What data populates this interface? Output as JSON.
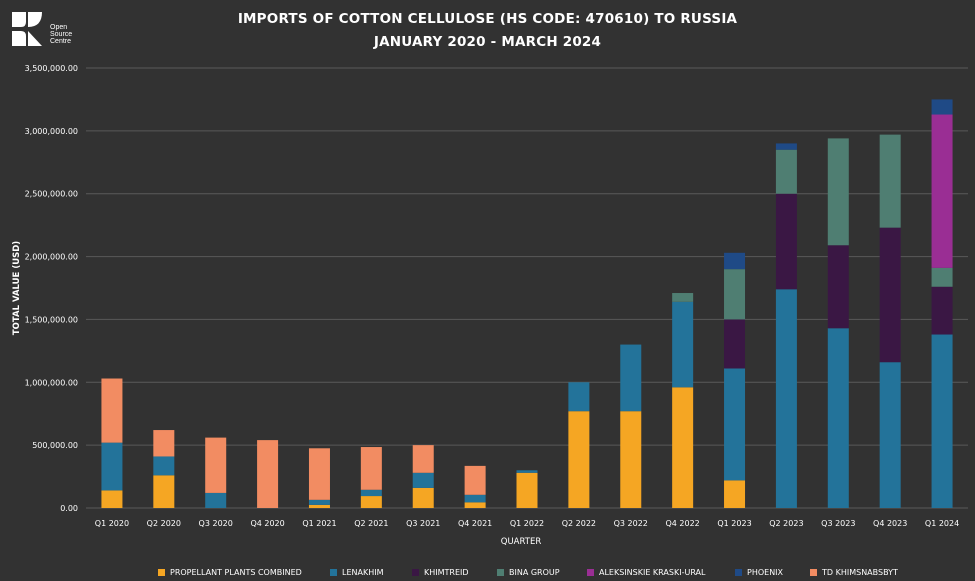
{
  "header": {
    "title_line1": "IMPORTS OF COTTON CELLULOSE (HS CODE: 470610) TO RUSSIA",
    "title_line2": "JANUARY 2020 - MARCH 2024"
  },
  "logo": {
    "line1": "Open",
    "line2": "Source",
    "line3": "Centre"
  },
  "colors": {
    "background": "#323232",
    "grid": "#5a5a5a",
    "text": "#ffffff",
    "propellant": "#F5A623",
    "lenakhim": "#23739A",
    "khimtreid": "#3A1744",
    "bina": "#4F7E72",
    "aleksinskie": "#9A2E94",
    "phoenix": "#1F4A86",
    "td": "#F28C62"
  },
  "chart_data": {
    "type": "bar",
    "stacked": true,
    "xlabel": "QUARTER",
    "ylabel": "TOTAL VALUE (USD)",
    "ylim": [
      0,
      3500000
    ],
    "yticks": [
      0,
      500000,
      1000000,
      1500000,
      2000000,
      2500000,
      3000000,
      3500000
    ],
    "ytick_labels": [
      "0.00",
      "500,000.00",
      "1,000,000.00",
      "1,500,000.00",
      "2,000,000.00",
      "2,500,000.00",
      "3,000,000.00",
      "3,500,000.00"
    ],
    "grid": true,
    "legend_position": "bottom",
    "categories": [
      "Q1 2020",
      "Q2 2020",
      "Q3 2020",
      "Q4 2020",
      "Q1 2021",
      "Q2 2021",
      "Q3 2021",
      "Q4 2021",
      "Q1 2022",
      "Q2 2022",
      "Q3 2022",
      "Q4 2022",
      "Q1 2023",
      "Q2 2023",
      "Q3 2023",
      "Q4 2023",
      "Q1 2024"
    ],
    "series": [
      {
        "name": "PROPELLANT PLANTS COMBINED",
        "color_key": "propellant",
        "values": [
          140000,
          260000,
          0,
          0,
          25000,
          95000,
          160000,
          45000,
          280000,
          770000,
          770000,
          960000,
          220000,
          0,
          0,
          0,
          0
        ]
      },
      {
        "name": "LENAKHIM",
        "color_key": "lenakhim",
        "values": [
          380000,
          150000,
          120000,
          0,
          40000,
          50000,
          120000,
          60000,
          20000,
          230000,
          530000,
          680000,
          890000,
          1740000,
          1430000,
          1160000,
          1380000
        ]
      },
      {
        "name": "KHIMTREID",
        "color_key": "khimtreid",
        "values": [
          0,
          0,
          0,
          0,
          0,
          0,
          0,
          0,
          0,
          0,
          0,
          0,
          390000,
          760000,
          660000,
          1070000,
          380000
        ]
      },
      {
        "name": "BINA GROUP",
        "color_key": "bina",
        "values": [
          0,
          0,
          0,
          0,
          0,
          0,
          0,
          0,
          0,
          0,
          0,
          70000,
          400000,
          350000,
          850000,
          740000,
          150000
        ]
      },
      {
        "name": "ALEKSINSKIE KRASKI-URAL",
        "color_key": "aleksinskie",
        "values": [
          0,
          0,
          0,
          0,
          0,
          0,
          0,
          0,
          0,
          0,
          0,
          0,
          0,
          0,
          0,
          0,
          1220000
        ]
      },
      {
        "name": "PHOENIX",
        "color_key": "phoenix",
        "values": [
          0,
          0,
          0,
          0,
          0,
          0,
          0,
          0,
          0,
          0,
          0,
          0,
          130000,
          50000,
          0,
          0,
          120000
        ]
      },
      {
        "name": "TD KHIMSNABSBYT",
        "color_key": "td",
        "values": [
          510000,
          210000,
          440000,
          540000,
          410000,
          340000,
          220000,
          230000,
          0,
          0,
          0,
          0,
          0,
          0,
          0,
          0,
          0
        ]
      }
    ]
  }
}
